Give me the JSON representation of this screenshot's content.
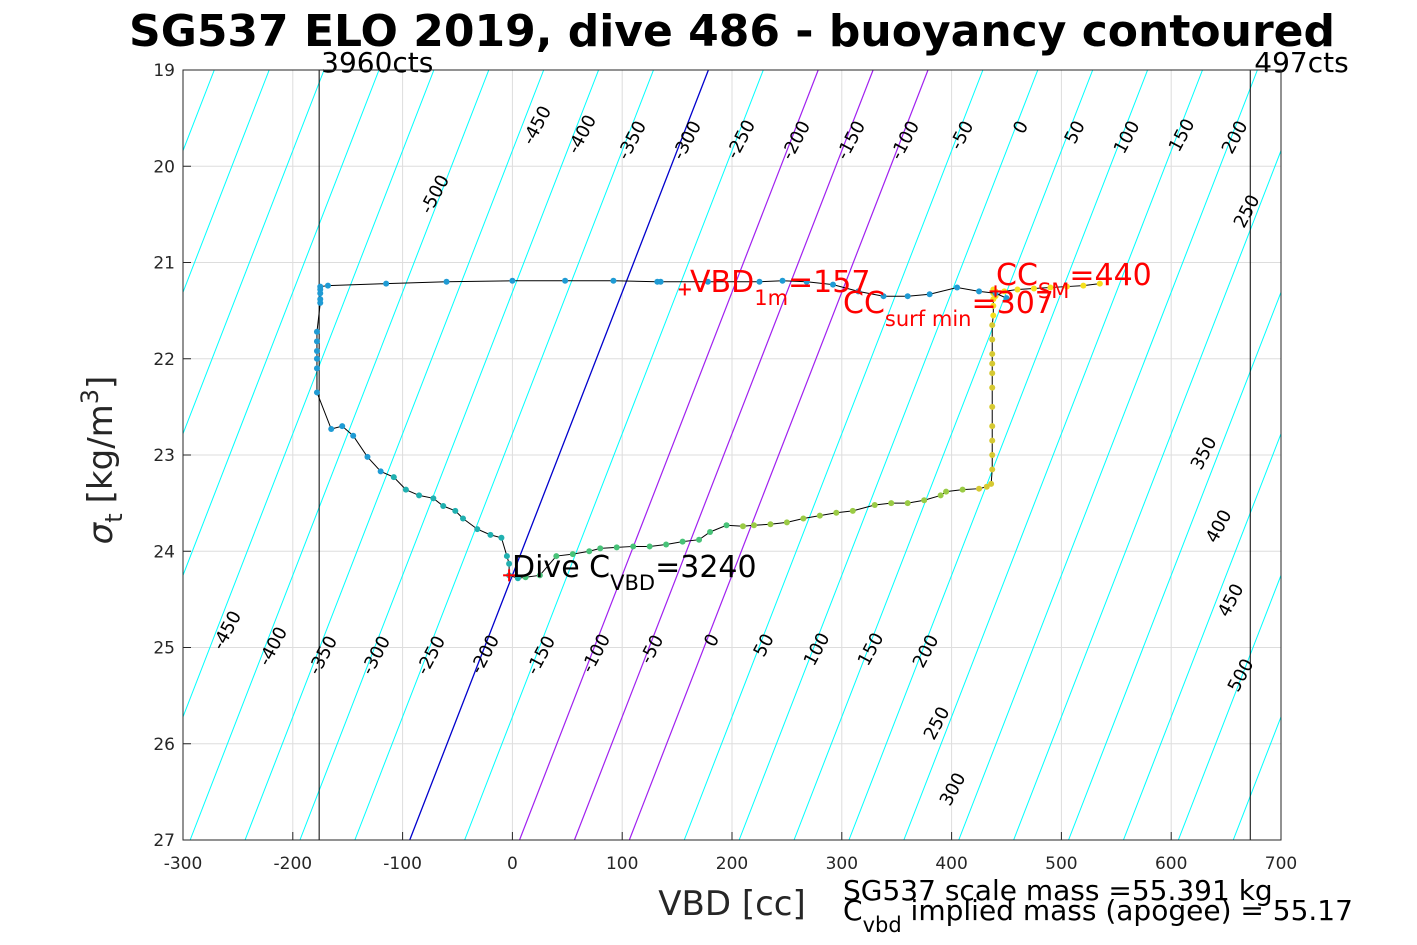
{
  "chart_data": {
    "type": "scatter",
    "title": "SG537 ELO 2019, dive 486 - buoyancy contoured",
    "xlabel": "VBD [cc]",
    "ylabel_symbol": "σ",
    "ylabel_sub": "t",
    "ylabel_unit": "[kg/m",
    "ylabel_sup": "3",
    "ylabel_close": "]",
    "xlim": [
      -300,
      700
    ],
    "ylim": [
      19,
      27
    ],
    "y_reversed": true,
    "grid": true,
    "xticks": [
      -300,
      -200,
      -100,
      0,
      100,
      200,
      300,
      400,
      500,
      600,
      700
    ],
    "yticks": [
      19,
      20,
      21,
      22,
      23,
      24,
      25,
      26,
      27
    ],
    "contours": {
      "levels_cyan": [
        -500,
        -450,
        -400,
        -350,
        -300,
        -250,
        -200,
        -150,
        -100,
        -50,
        50,
        250,
        300,
        350,
        400,
        450,
        500
      ],
      "levels_purple": [
        100,
        150,
        200
      ],
      "level_blue": 0,
      "slope_cc_per_sigma": 0,
      "color_cyan": "#00ffff",
      "color_purple": "#a020f0",
      "color_blue": "#0000cd",
      "labels_top": [
        "-500",
        "-450",
        "-400",
        "-350",
        "-300",
        "-250",
        "-200",
        "-150",
        "-100",
        "-50",
        "0",
        "50",
        "100",
        "150",
        "200",
        "250"
      ],
      "labels_bottom": [
        "-450",
        "-400",
        "-350",
        "-300",
        "-250",
        "-200",
        "-150",
        "-100",
        "-50",
        "0",
        "50",
        "100",
        "150",
        "200",
        "250",
        "300"
      ],
      "labels_right": [
        "350",
        "400",
        "450",
        "500"
      ]
    },
    "vlines": [
      {
        "x": -176,
        "label": "3960cts"
      },
      {
        "x": 672,
        "label": "497cts"
      }
    ],
    "series": [
      {
        "name": "",
        "color_gradient": [
          "#1f9bd4",
          "#20b0b0",
          "#48c278",
          "#9acb45",
          "#d6c932",
          "#f5e01d"
        ],
        "x": [
          -175,
          -175,
          -175,
          -175,
          -178,
          -178,
          -178,
          -178,
          -178,
          -178,
          -165,
          -155,
          -145,
          -132,
          -120,
          -108,
          -97,
          -85,
          -72,
          -63,
          -52,
          -45,
          -32,
          -20,
          -10,
          -5,
          -3,
          -3,
          5,
          12,
          25,
          40,
          55,
          70,
          80,
          95,
          110,
          125,
          140,
          155,
          170,
          180,
          195,
          210,
          220,
          235,
          250,
          265,
          280,
          295,
          310,
          330,
          345,
          360,
          375,
          390,
          395,
          410,
          425,
          432,
          436,
          437,
          437,
          437,
          437,
          437,
          437,
          437,
          437,
          437,
          437,
          437,
          438,
          438,
          438,
          438,
          438,
          438,
          440,
          440,
          448,
          460,
          475,
          490,
          505,
          520,
          535
        ],
        "y": [
          21.28,
          21.32,
          21.38,
          21.42,
          21.72,
          21.82,
          21.92,
          22.0,
          22.1,
          22.35,
          22.73,
          22.7,
          22.8,
          23.02,
          23.17,
          23.23,
          23.36,
          23.42,
          23.45,
          23.53,
          23.58,
          23.66,
          23.77,
          23.83,
          23.86,
          24.05,
          24.13,
          24.25,
          24.28,
          24.27,
          24.25,
          24.05,
          24.03,
          24.0,
          23.97,
          23.96,
          23.95,
          23.95,
          23.93,
          23.9,
          23.88,
          23.8,
          23.73,
          23.74,
          23.73,
          23.72,
          23.7,
          23.66,
          23.63,
          23.6,
          23.58,
          23.52,
          23.5,
          23.5,
          23.47,
          23.42,
          23.38,
          23.36,
          23.35,
          23.33,
          23.3,
          23.15,
          23.0,
          22.85,
          22.7,
          22.5,
          22.3,
          22.15,
          22.05,
          21.95,
          21.8,
          21.65,
          21.55,
          21.45,
          21.38,
          21.32,
          21.3,
          21.28,
          21.3,
          21.35,
          21.3,
          21.28,
          21.27,
          21.26,
          21.25,
          21.24,
          21.22
        ]
      },
      {
        "name": "",
        "x": [
          -175,
          -168,
          -115,
          -60,
          0,
          48,
          92,
          132,
          135,
          178,
          225,
          246,
          268,
          292,
          315,
          338,
          360,
          380,
          405,
          425,
          440,
          450
        ],
        "y": [
          21.25,
          21.24,
          21.22,
          21.2,
          21.19,
          21.19,
          21.19,
          21.2,
          21.2,
          21.2,
          21.2,
          21.19,
          21.2,
          21.23,
          21.3,
          21.35,
          21.35,
          21.33,
          21.26,
          21.3,
          21.32,
          21.37
        ]
      }
    ],
    "markers": [
      {
        "x": 157,
        "y": 21.28,
        "color": "#ff0000"
      },
      {
        "x": -3,
        "y": 24.25,
        "color": "#ff0000"
      },
      {
        "x": 440,
        "y": 21.3,
        "color": "#ff0000"
      }
    ],
    "annotations": {
      "vbd1m": {
        "main": "VBD",
        "sub": "1m",
        "tail": "=157",
        "color": "#ff0000"
      },
      "ccsm": {
        "main": "CC",
        "sub": "SM",
        "tail": "=440",
        "color": "#ff0000"
      },
      "ccsurf": {
        "main": "CC",
        "sub": "surf min",
        "tail": "=307",
        "color": "#ff0000"
      },
      "dive": {
        "main": "Dive C",
        "sub": "VBD",
        "tail": "=3240",
        "color": "#000000"
      }
    },
    "footer": {
      "line1": "SG537 scale mass =55.391 kg",
      "line2_main": "C",
      "line2_sub": "vbd",
      "line2_tail": " implied mass (apogee) = 55.17"
    }
  }
}
